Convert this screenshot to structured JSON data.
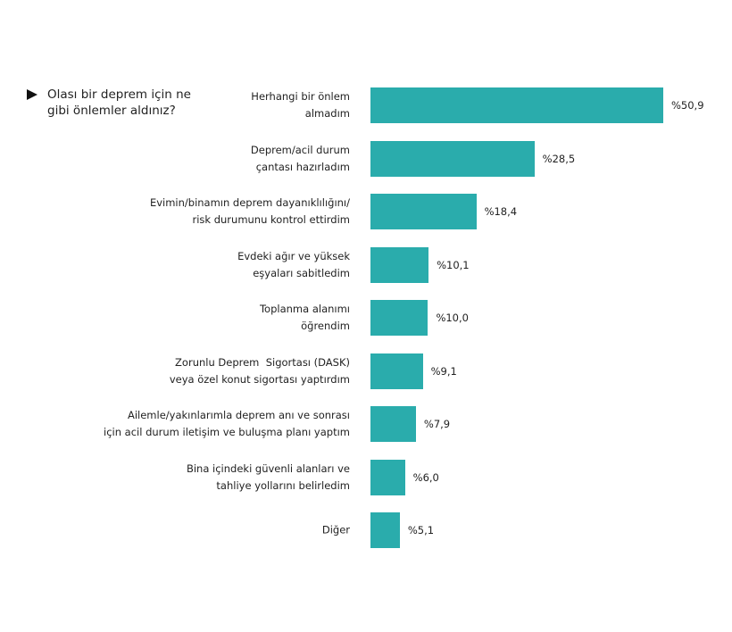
{
  "chart_data": {
    "type": "bar",
    "orientation": "horizontal",
    "title": "Olası bir deprem için ne gibi önlemler aldınız?",
    "categories": [
      "Herhangi bir önlem\nalmadım",
      "Deprem/acil durum\nçantası hazırladım",
      "Evimin/binamın deprem dayanıklılığını/\nrisk durumunu kontrol ettirdim",
      "Evdeki ağır ve yüksek\neşyaları sabitledim",
      "Toplanma alanımı\nöğrendim",
      "Zorunlu Deprem  Sigortası (DASK)\nveya özel konut sigortası yaptırdım",
      "Ailemle/yakınlarımla deprem anı ve sonrası\niçin acil durum iletişim ve buluşma planı yaptım",
      "Bina içindeki güvenli alanları ve\ntahliye yollarını belirledim",
      "Diğer"
    ],
    "values": [
      50.9,
      28.5,
      18.4,
      10.1,
      10.0,
      9.1,
      7.9,
      6.0,
      5.1
    ],
    "value_labels": [
      "%50,9",
      "%28,5",
      "%18,4",
      "%10,1",
      "%10,0",
      "%9,1",
      "%7,9",
      "%6,0",
      "%5,1"
    ],
    "color": "#2aacac"
  }
}
